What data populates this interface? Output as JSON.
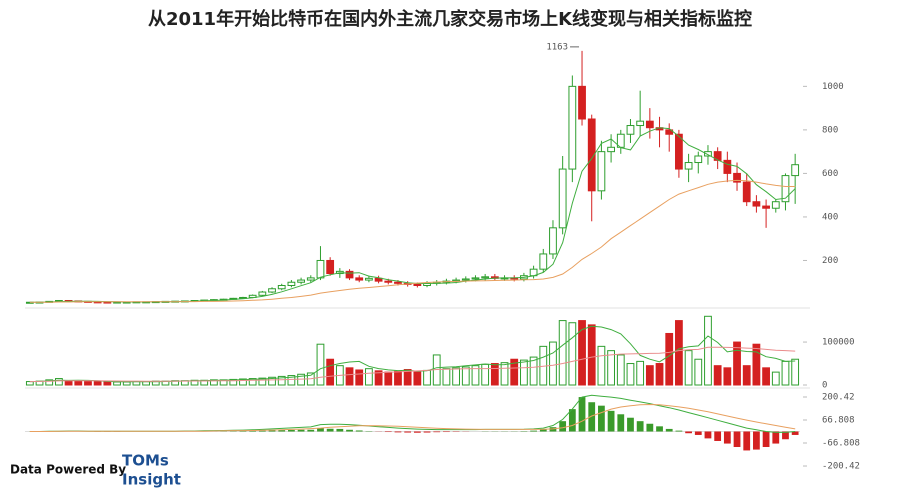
{
  "chart_data": [
    {
      "type": "candlestick",
      "title": "从2011年开始比特币在国内外主流几家交易市场上K线变现与相关指标监控",
      "up_color": "#2e9e2e",
      "down_color": "#d42020",
      "open": [
        7,
        8,
        9,
        12,
        16,
        14,
        12,
        10,
        9,
        8,
        9,
        9,
        10,
        10,
        11,
        12,
        13,
        14,
        16,
        18,
        20,
        22,
        26,
        30,
        40,
        55,
        70,
        85,
        100,
        110,
        120,
        200,
        140,
        150,
        120,
        110,
        118,
        105,
        100,
        95,
        90,
        85,
        95,
        100,
        105,
        110,
        115,
        120,
        125,
        118,
        120,
        115,
        130,
        160,
        230,
        350,
        620,
        1000,
        850,
        520,
        700,
        720,
        780,
        820,
        840,
        810,
        800,
        780,
        620,
        650,
        680,
        700,
        660,
        600,
        560,
        470,
        450,
        440,
        470,
        590
      ],
      "high": [
        9,
        10,
        13,
        18,
        17,
        15,
        13,
        11,
        10,
        10,
        10,
        11,
        11,
        12,
        13,
        14,
        15,
        17,
        19,
        22,
        24,
        28,
        33,
        44,
        60,
        77,
        93,
        110,
        121,
        132,
        266,
        215,
        165,
        160,
        132,
        130,
        130,
        116,
        110,
        105,
        99,
        105,
        110,
        116,
        121,
        127,
        132,
        138,
        138,
        132,
        132,
        143,
        176,
        253,
        385,
        680,
        1050,
        1163,
        870,
        750,
        780,
        800,
        850,
        980,
        900,
        860,
        830,
        800,
        690,
        700,
        730,
        720,
        700,
        650,
        600,
        500,
        480,
        480,
        600,
        690
      ],
      "low": [
        6,
        7,
        8,
        11,
        13,
        11,
        9,
        8,
        7,
        7,
        8,
        8,
        9,
        9,
        10,
        11,
        12,
        13,
        14,
        16,
        18,
        20,
        23,
        27,
        36,
        50,
        63,
        77,
        90,
        99,
        110,
        130,
        120,
        110,
        100,
        100,
        95,
        90,
        85,
        80,
        76,
        77,
        85,
        90,
        95,
        99,
        104,
        108,
        106,
        106,
        104,
        104,
        117,
        144,
        207,
        320,
        560,
        820,
        380,
        480,
        650,
        690,
        740,
        770,
        760,
        720,
        700,
        580,
        560,
        600,
        640,
        620,
        560,
        520,
        450,
        420,
        350,
        420,
        430,
        460
      ],
      "close": [
        8,
        9,
        12,
        16,
        14,
        12,
        10,
        9,
        8,
        9,
        9,
        10,
        10,
        11,
        12,
        13,
        14,
        16,
        18,
        20,
        22,
        26,
        30,
        40,
        55,
        70,
        85,
        100,
        110,
        120,
        200,
        140,
        150,
        120,
        110,
        118,
        105,
        100,
        95,
        90,
        85,
        95,
        100,
        105,
        110,
        115,
        120,
        125,
        118,
        120,
        115,
        130,
        160,
        230,
        350,
        620,
        1000,
        850,
        520,
        700,
        720,
        780,
        820,
        840,
        810,
        800,
        780,
        620,
        650,
        680,
        700,
        660,
        600,
        560,
        470,
        450,
        440,
        470,
        590,
        640
      ],
      "series": [
        {
          "color": "#3fae3f",
          "values": [
            8,
            8,
            9,
            11,
            12,
            13,
            13,
            12,
            11,
            10,
            9,
            9,
            9,
            10,
            10,
            11,
            12,
            13,
            15,
            16,
            18,
            21,
            24,
            29,
            35,
            44,
            56,
            70,
            84,
            98,
            123,
            134,
            144,
            142,
            144,
            128,
            121,
            111,
            105,
            98,
            94,
            94,
            95,
            96,
            99,
            105,
            110,
            115,
            119,
            120,
            120,
            122,
            129,
            145,
            183,
            282,
            462,
            610,
            668,
            738,
            758,
            718,
            708,
            772,
            794,
            810,
            806,
            770,
            730,
            710,
            686,
            662,
            642,
            632,
            598,
            548,
            516,
            480,
            486,
            530
          ]
        },
        {
          "color": "#e8a060",
          "values": [
            8,
            8,
            8,
            9,
            9,
            10,
            10,
            10,
            10,
            10,
            10,
            10,
            10,
            10,
            10,
            10,
            11,
            11,
            12,
            12,
            13,
            14,
            15,
            17,
            19,
            22,
            26,
            30,
            35,
            41,
            50,
            56,
            62,
            68,
            72,
            76,
            80,
            84,
            88,
            92,
            96,
            99,
            101,
            103,
            104,
            105,
            106,
            107,
            108,
            109,
            110,
            111,
            112,
            115,
            122,
            138,
            168,
            205,
            232,
            262,
            300,
            330,
            360,
            390,
            420,
            450,
            480,
            505,
            520,
            535,
            550,
            560,
            565,
            568,
            566,
            560,
            552,
            545,
            540,
            540
          ]
        }
      ],
      "ylim": [
        0,
        1190
      ],
      "yticks": [
        200,
        400,
        600,
        800,
        1000
      ],
      "max_label": 1163
    },
    {
      "type": "volume",
      "values": [
        8000,
        9000,
        12000,
        15000,
        10000,
        9000,
        8000,
        8000,
        7000,
        7000,
        7000,
        8000,
        8000,
        9000,
        9000,
        10000,
        10000,
        11000,
        11000,
        12000,
        12000,
        13000,
        14000,
        15000,
        16000,
        18000,
        20000,
        22000,
        25000,
        28000,
        95000,
        60000,
        45000,
        40000,
        35000,
        38000,
        33000,
        30000,
        32000,
        36000,
        30000,
        34000,
        70000,
        38000,
        40000,
        42000,
        45000,
        48000,
        50000,
        52000,
        60000,
        58000,
        65000,
        90000,
        100000,
        150000,
        145000,
        150000,
        140000,
        90000,
        80000,
        70000,
        50000,
        55000,
        45000,
        50000,
        120000,
        150000,
        80000,
        60000,
        160000,
        45000,
        40000,
        100000,
        45000,
        95000,
        40000,
        30000,
        55000,
        60000
      ],
      "series": [
        {
          "color": "#3fae3f",
          "values": [
            8000,
            8500,
            9700,
            11000,
            10800,
            11000,
            10800,
            10000,
            8400,
            7800,
            7400,
            7400,
            7600,
            7800,
            8200,
            8800,
            9200,
            9800,
            10200,
            10800,
            11200,
            11800,
            12400,
            13200,
            14000,
            15200,
            16600,
            18200,
            20200,
            22600,
            38000,
            45000,
            50000,
            53600,
            55000,
            43600,
            38200,
            35200,
            33600,
            34400,
            32200,
            33000,
            40400,
            41600,
            42400,
            44800,
            46800,
            49000,
            47000,
            47400,
            51000,
            53600,
            57000,
            65000,
            74600,
            92600,
            110000,
            129000,
            137000,
            135000,
            129000,
            119000,
            96000,
            69000,
            60000,
            54000,
            68000,
            84000,
            89000,
            91000,
            114000,
            99000,
            77000,
            81000,
            78000,
            77000,
            66000,
            62000,
            55000,
            56000
          ]
        },
        {
          "color": "#ea8c8c",
          "values": [
            8000,
            8300,
            8800,
            9600,
            9800,
            9800,
            9800,
            9700,
            9500,
            9300,
            9100,
            9000,
            8900,
            8900,
            8900,
            9000,
            9100,
            9200,
            9300,
            9500,
            9800,
            10100,
            10500,
            10900,
            11300,
            11800,
            12300,
            13000,
            13700,
            14500,
            18000,
            20500,
            22400,
            24200,
            25700,
            27200,
            28500,
            29600,
            30500,
            31600,
            32800,
            34000,
            36000,
            36800,
            37300,
            37800,
            38200,
            38300,
            38500,
            38800,
            39700,
            40400,
            41500,
            43500,
            46000,
            50000,
            55000,
            60000,
            65000,
            68000,
            70000,
            72000,
            72500,
            73000,
            73500,
            74000,
            76000,
            80000,
            82000,
            83000,
            88000,
            88000,
            87500,
            87000,
            86000,
            85000,
            83000,
            81000,
            80000,
            79000
          ]
        }
      ],
      "ylim": [
        0,
        170000
      ],
      "yticks": [
        0,
        100000
      ]
    },
    {
      "type": "macd",
      "up_color": "#3a9a2a",
      "down_color": "#d42020",
      "values": [
        0,
        0,
        1,
        2,
        2,
        1,
        0,
        -1,
        -1,
        -1,
        0,
        0,
        0,
        0,
        1,
        1,
        1,
        1,
        1,
        2,
        2,
        2,
        3,
        4,
        5,
        7,
        8,
        9,
        10,
        10,
        20,
        16,
        15,
        10,
        6,
        2,
        -1,
        -3,
        -5,
        -6,
        -7,
        -6,
        -4,
        -3,
        -2,
        -1,
        0,
        1,
        1,
        1,
        1,
        2,
        5,
        12,
        25,
        60,
        130,
        200,
        170,
        150,
        120,
        100,
        80,
        60,
        45,
        30,
        15,
        5,
        -10,
        -20,
        -40,
        -55,
        -70,
        -90,
        -110,
        -105,
        -90,
        -70,
        -45,
        -20
      ],
      "series": [
        {
          "color": "#3fae3f",
          "values": [
            0,
            0,
            1,
            2,
            3,
            3,
            2,
            1,
            1,
            1,
            1,
            1,
            1,
            1,
            2,
            2,
            3,
            3,
            4,
            5,
            6,
            7,
            8,
            10,
            12,
            15,
            18,
            21,
            24,
            27,
            40,
            42,
            42,
            40,
            36,
            32,
            28,
            24,
            20,
            17,
            14,
            12,
            11,
            11,
            11,
            11,
            11,
            12,
            12,
            12,
            12,
            13,
            15,
            20,
            35,
            70,
            130,
            200,
            210,
            205,
            200,
            192,
            182,
            172,
            162,
            150,
            138,
            125,
            110,
            95,
            80,
            65,
            50,
            35,
            20,
            10,
            0,
            -5,
            -5,
            0
          ]
        },
        {
          "color": "#e8a060",
          "values": [
            0,
            0,
            0,
            1,
            1,
            2,
            2,
            2,
            2,
            1,
            1,
            1,
            1,
            1,
            1,
            1,
            2,
            2,
            2,
            3,
            4,
            5,
            5,
            6,
            7,
            8,
            10,
            12,
            14,
            17,
            20,
            25,
            28,
            30,
            33,
            34,
            33,
            32,
            30,
            28,
            25,
            22,
            19,
            17,
            15,
            14,
            13,
            12,
            12,
            12,
            12,
            12,
            12,
            13,
            15,
            22,
            35,
            60,
            90,
            110,
            130,
            142,
            150,
            155,
            157,
            155,
            150,
            143,
            135,
            125,
            115,
            102,
            90,
            78,
            66,
            55,
            45,
            35,
            25,
            15
          ]
        }
      ],
      "ylim": [
        -270,
        241
      ],
      "yticks": [
        200.42,
        66.808,
        -66.808,
        -200.42
      ]
    }
  ],
  "branding": {
    "text": "Data Powered By",
    "lines": [
      "TOMs",
      "Insight"
    ]
  }
}
